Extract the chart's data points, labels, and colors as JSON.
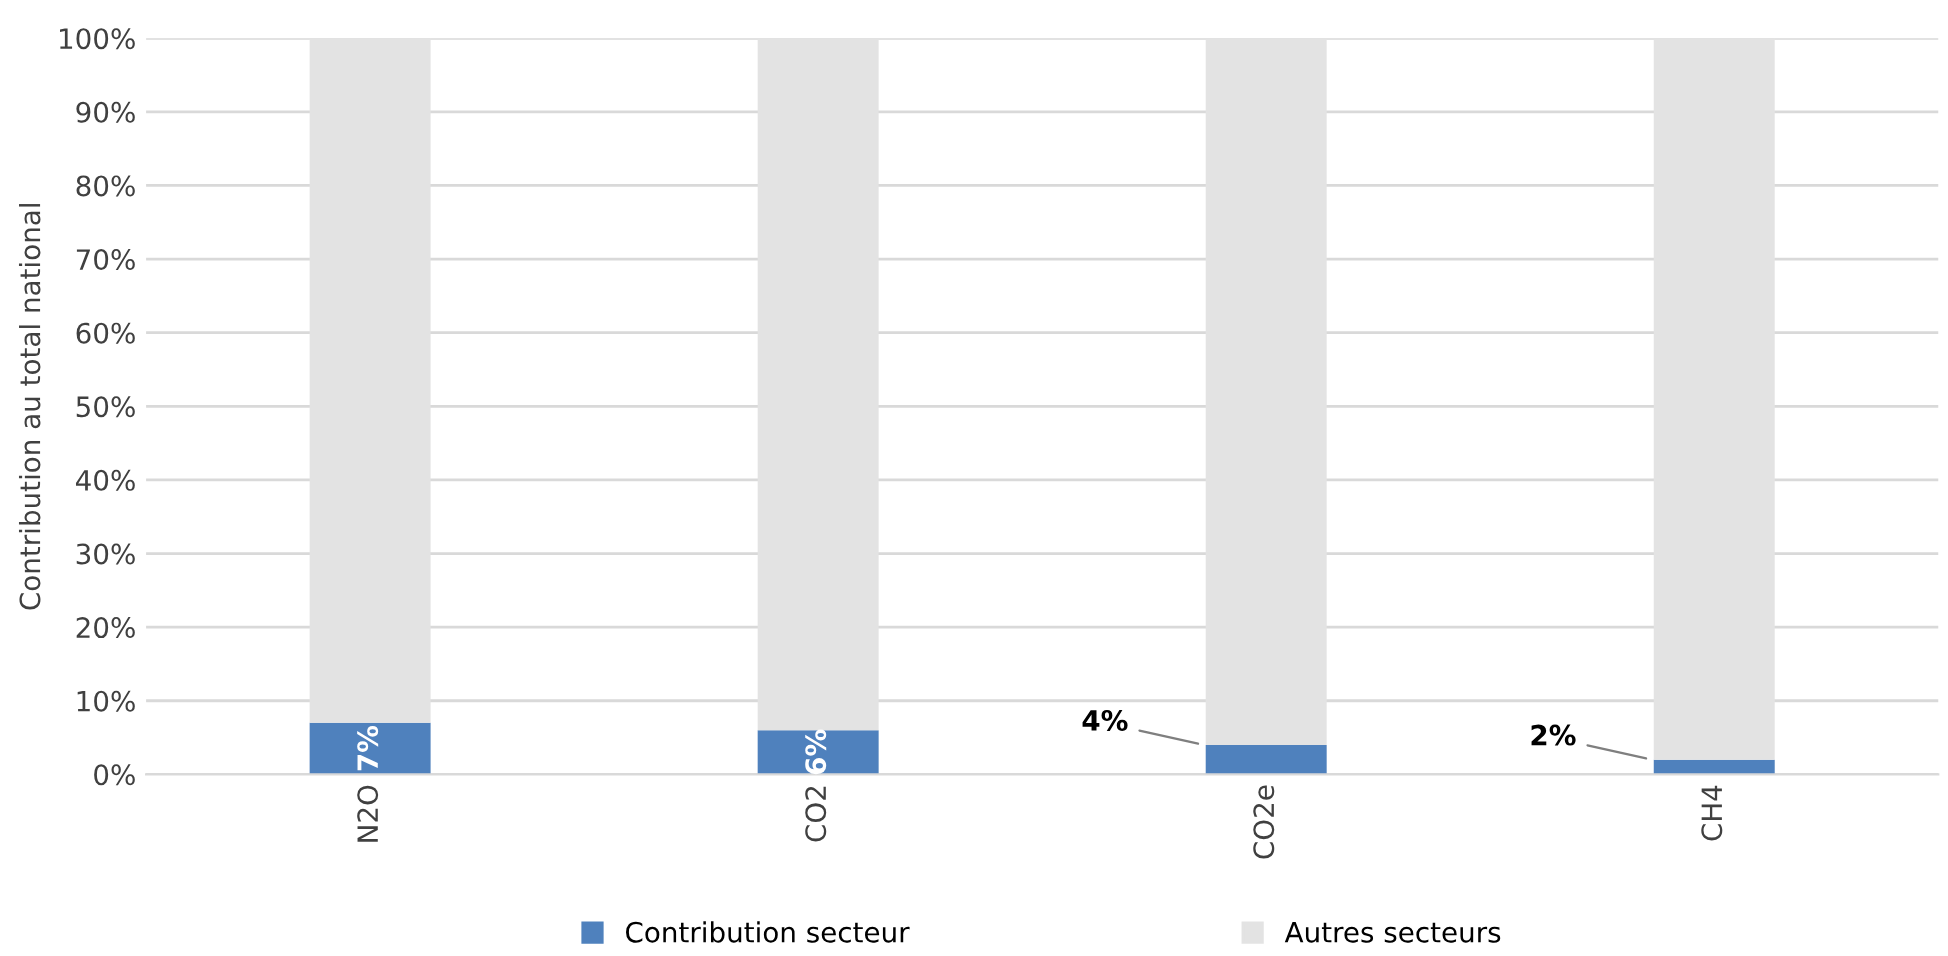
{
  "chart_data": {
    "type": "bar",
    "stacked": true,
    "ylabel": "Contribution au total national",
    "categories": [
      "N2O",
      "CO2",
      "CO2e",
      "CH4"
    ],
    "series": [
      {
        "name": "Contribution secteur",
        "color": "#4f81bd",
        "values": [
          7,
          6,
          4,
          2
        ],
        "value_labels": [
          "7%",
          "6%",
          "4%",
          "2%"
        ]
      },
      {
        "name": "Autres secteurs",
        "color": "#e3e3e3",
        "values": [
          93,
          94,
          96,
          98
        ]
      }
    ],
    "ylim": [
      0,
      100
    ],
    "yticks": [
      {
        "value": 0,
        "label": "0%"
      },
      {
        "value": 10,
        "label": "10%"
      },
      {
        "value": 20,
        "label": "20%"
      },
      {
        "value": 30,
        "label": "30%"
      },
      {
        "value": 40,
        "label": "40%"
      },
      {
        "value": 50,
        "label": "50%"
      },
      {
        "value": 60,
        "label": "60%"
      },
      {
        "value": 70,
        "label": "70%"
      },
      {
        "value": 80,
        "label": "80%"
      },
      {
        "value": 90,
        "label": "90%"
      },
      {
        "value": 100,
        "label": "100%"
      }
    ],
    "grid": "y",
    "legend": "bottom"
  }
}
